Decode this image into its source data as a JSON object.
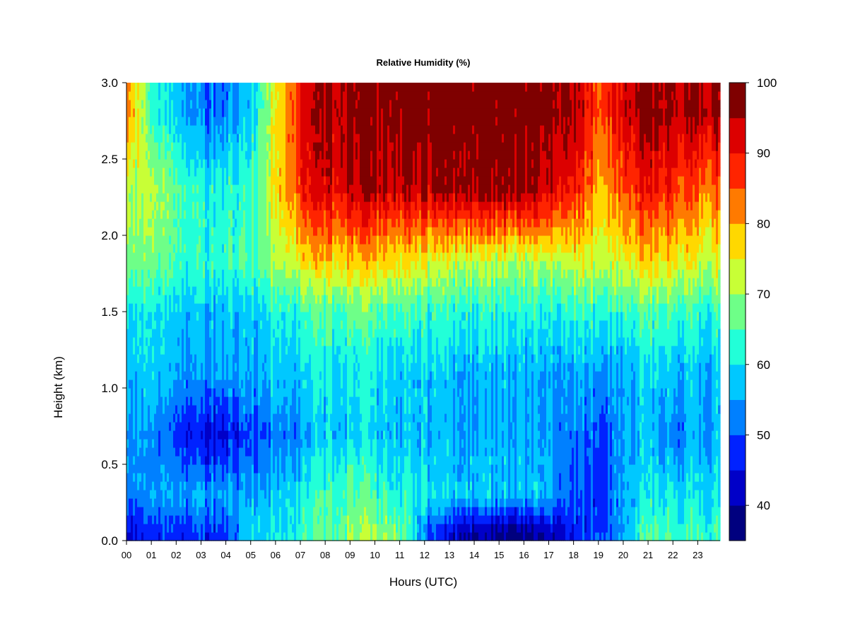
{
  "chart_data": {
    "type": "heatmap",
    "title": "Relative Humidity (%)",
    "xlabel": "Hours (UTC)",
    "ylabel": "Height (km)",
    "xlim": [
      0,
      23.9
    ],
    "ylim": [
      0.0,
      3.0
    ],
    "x_ticks": [
      "00",
      "01",
      "02",
      "03",
      "04",
      "05",
      "06",
      "07",
      "08",
      "09",
      "10",
      "11",
      "12",
      "13",
      "14",
      "15",
      "16",
      "17",
      "18",
      "19",
      "20",
      "21",
      "22",
      "23"
    ],
    "y_ticks": [
      "0.0",
      "0.5",
      "1.0",
      "1.5",
      "2.0",
      "2.5",
      "3.0"
    ],
    "colorbar": {
      "range": [
        35,
        100
      ],
      "levels": [
        35,
        40,
        45,
        50,
        55,
        60,
        65,
        70,
        75,
        80,
        85,
        90,
        95,
        100
      ],
      "colors": [
        "#00007F",
        "#0000C8",
        "#0022FF",
        "#0080FF",
        "#00C8FF",
        "#22FFD8",
        "#6EFF88",
        "#C8FF36",
        "#FFD800",
        "#FF7A00",
        "#FF2400",
        "#DC0000",
        "#7F0000"
      ],
      "tick_labels": [
        "40",
        "50",
        "60",
        "70",
        "80",
        "90",
        "100"
      ]
    },
    "hour_profiles": [
      {
        "hour": 0,
        "rh": [
          44,
          52,
          55,
          57,
          60,
          68,
          72,
          84
        ]
      },
      {
        "hour": 1,
        "rh": [
          45,
          53,
          52,
          57,
          59,
          66,
          70,
          62
        ]
      },
      {
        "hour": 2,
        "rh": [
          47,
          55,
          48,
          55,
          58,
          64,
          66,
          58
        ]
      },
      {
        "hour": 3,
        "rh": [
          48,
          55,
          44,
          55,
          57,
          63,
          62,
          52
        ]
      },
      {
        "hour": 4,
        "rh": [
          48,
          55,
          44,
          55,
          57,
          63,
          62,
          52
        ]
      },
      {
        "hour": 5,
        "rh": [
          60,
          55,
          50,
          56,
          58,
          65,
          64,
          58
        ]
      },
      {
        "hour": 6,
        "rh": [
          60,
          58,
          52,
          58,
          62,
          70,
          76,
          75
        ]
      },
      {
        "hour": 7,
        "rh": [
          62,
          60,
          53,
          58,
          63,
          74,
          88,
          90
        ]
      },
      {
        "hour": 8,
        "rh": [
          65,
          64,
          57,
          60,
          65,
          76,
          92,
          95
        ]
      },
      {
        "hour": 9,
        "rh": [
          68,
          66,
          58,
          60,
          66,
          77,
          94,
          96
        ]
      },
      {
        "hour": 10,
        "rh": [
          70,
          64,
          58,
          60,
          65,
          77,
          94,
          97
        ]
      },
      {
        "hour": 11,
        "rh": [
          68,
          62,
          57,
          58,
          65,
          75,
          94,
          98
        ]
      },
      {
        "hour": 12,
        "rh": [
          52,
          60,
          56,
          58,
          63,
          73,
          94,
          99
        ]
      },
      {
        "hour": 13,
        "rh": [
          44,
          58,
          56,
          57,
          63,
          72,
          96,
          99
        ]
      },
      {
        "hour": 14,
        "rh": [
          40,
          58,
          56,
          56,
          62,
          71,
          97,
          99
        ]
      },
      {
        "hour": 15,
        "rh": [
          38,
          57,
          56,
          56,
          62,
          70,
          97,
          99
        ]
      },
      {
        "hour": 16,
        "rh": [
          37,
          57,
          56,
          56,
          62,
          70,
          97,
          99
        ]
      },
      {
        "hour": 17,
        "rh": [
          42,
          57,
          56,
          56,
          62,
          71,
          94,
          98
        ]
      },
      {
        "hour": 18,
        "rh": [
          46,
          50,
          52,
          56,
          63,
          73,
          90,
          96
        ]
      },
      {
        "hour": 19,
        "rh": [
          50,
          48,
          50,
          55,
          63,
          73,
          80,
          86
        ]
      },
      {
        "hour": 20,
        "rh": [
          55,
          56,
          55,
          56,
          64,
          74,
          86,
          94
        ]
      },
      {
        "hour": 21,
        "rh": [
          65,
          60,
          57,
          58,
          65,
          76,
          90,
          97
        ]
      },
      {
        "hour": 22,
        "rh": [
          64,
          60,
          52,
          57,
          64,
          75,
          88,
          95
        ]
      },
      {
        "hour": 23,
        "rh": [
          64,
          60,
          56,
          57,
          63,
          73,
          84,
          96
        ]
      }
    ],
    "profile_heights_km": [
      0.05,
      0.3,
      0.7,
      1.1,
      1.5,
      1.8,
      2.3,
      2.8
    ]
  }
}
